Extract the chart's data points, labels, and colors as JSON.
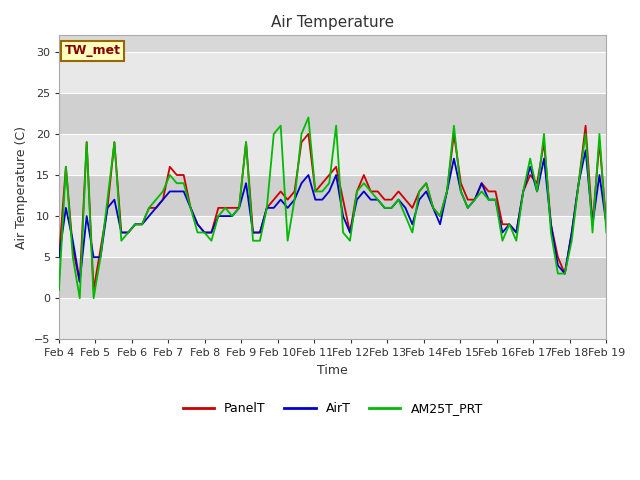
{
  "title": "Air Temperature",
  "xlabel": "Time",
  "ylabel": "Air Temperature (C)",
  "ylim": [
    -5,
    32
  ],
  "yticks": [
    -5,
    0,
    5,
    10,
    15,
    20,
    25,
    30
  ],
  "plot_bg_color": "#d8d8d8",
  "band_color_light": "#e8e8e8",
  "band_color_dark": "#d0d0d0",
  "station_label": "TW_met",
  "station_box_facecolor": "#ffffc0",
  "station_box_edgecolor": "#996600",
  "station_text_color": "#880000",
  "legend_labels": [
    "PanelT",
    "AirT",
    "AM25T_PRT"
  ],
  "line_colors": [
    "#cc0000",
    "#0000cc",
    "#00bb00"
  ],
  "line_width": 1.3,
  "xtick_labels": [
    "Feb 4",
    "Feb 5",
    "Feb 6",
    "Feb 7",
    "Feb 8",
    "Feb 9",
    "Feb 10",
    "Feb 11",
    "Feb 12",
    "Feb 13",
    "Feb 14",
    "Feb 15",
    "Feb 16",
    "Feb 17",
    "Feb 18",
    "Feb 19"
  ],
  "panel_t": [
    5,
    16,
    6,
    2,
    19,
    1,
    6,
    11,
    19,
    8,
    8,
    9,
    9,
    11,
    11,
    12,
    16,
    15,
    15,
    11,
    9,
    8,
    8,
    11,
    11,
    11,
    11,
    19,
    8,
    8,
    11,
    12,
    13,
    12,
    13,
    19,
    20,
    13,
    14,
    15,
    16,
    12,
    8,
    13,
    15,
    13,
    13,
    12,
    12,
    13,
    12,
    11,
    13,
    14,
    11,
    10,
    13,
    20,
    14,
    12,
    12,
    14,
    13,
    13,
    9,
    9,
    8,
    13,
    15,
    14,
    19,
    9,
    5,
    3,
    8,
    14,
    21,
    9,
    19,
    9
  ],
  "air_t": [
    5,
    11,
    7,
    2,
    10,
    5,
    5,
    11,
    12,
    8,
    8,
    9,
    9,
    10,
    11,
    12,
    13,
    13,
    13,
    11,
    9,
    8,
    8,
    10,
    10,
    10,
    11,
    14,
    8,
    8,
    11,
    11,
    12,
    11,
    12,
    14,
    15,
    12,
    12,
    13,
    15,
    10,
    8,
    12,
    13,
    12,
    12,
    11,
    11,
    12,
    11,
    9,
    12,
    13,
    11,
    9,
    13,
    17,
    13,
    11,
    12,
    14,
    12,
    12,
    8,
    9,
    8,
    13,
    16,
    13,
    17,
    9,
    4,
    3,
    8,
    14,
    18,
    9,
    15,
    9
  ],
  "am25t": [
    1,
    16,
    5,
    0,
    19,
    0,
    5,
    12,
    19,
    7,
    8,
    9,
    9,
    11,
    12,
    13,
    15,
    14,
    14,
    11,
    8,
    8,
    7,
    10,
    11,
    10,
    11,
    19,
    7,
    7,
    11,
    20,
    21,
    7,
    12,
    20,
    22,
    13,
    13,
    14,
    21,
    8,
    7,
    13,
    14,
    13,
    12,
    11,
    11,
    12,
    10,
    8,
    13,
    14,
    11,
    10,
    13,
    21,
    13,
    11,
    12,
    13,
    12,
    12,
    7,
    9,
    7,
    13,
    17,
    13,
    20,
    8,
    3,
    3,
    7,
    14,
    20,
    8,
    20,
    8
  ]
}
